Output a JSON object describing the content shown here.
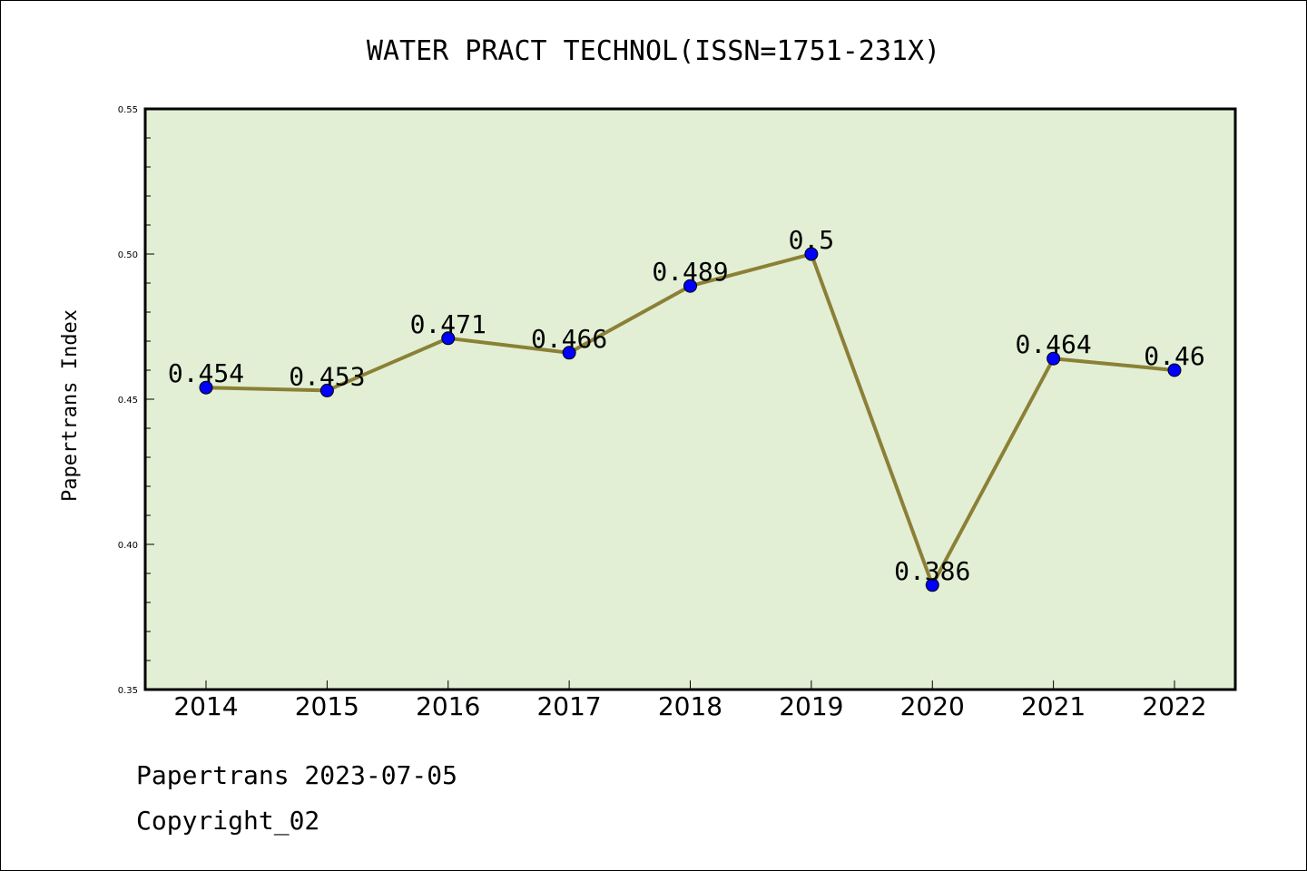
{
  "chart_data": {
    "type": "line",
    "title": "WATER PRACT TECHNOL(ISSN=1751-231X)",
    "ylabel": "Papertrans Index",
    "xlabel": "",
    "categories": [
      "2014",
      "2015",
      "2016",
      "2017",
      "2018",
      "2019",
      "2020",
      "2021",
      "2022"
    ],
    "values": [
      0.454,
      0.453,
      0.471,
      0.466,
      0.489,
      0.5,
      0.386,
      0.464,
      0.46
    ],
    "data_labels": [
      "0.454",
      "0.453",
      "0.471",
      "0.466",
      "0.489",
      "0.5",
      "0.386",
      "0.464",
      "0.46"
    ],
    "ylim": [
      0.35,
      0.55
    ],
    "yticks": [
      "0.35",
      "0.40",
      "0.45",
      "0.50",
      "0.55"
    ],
    "grid": false,
    "colors": {
      "plot_bg": "#e2efd5",
      "line": "#8b8036",
      "marker": "#0000ff"
    }
  },
  "footer": {
    "line1": "Papertrans 2023-07-05",
    "line2": "Copyright_02"
  }
}
